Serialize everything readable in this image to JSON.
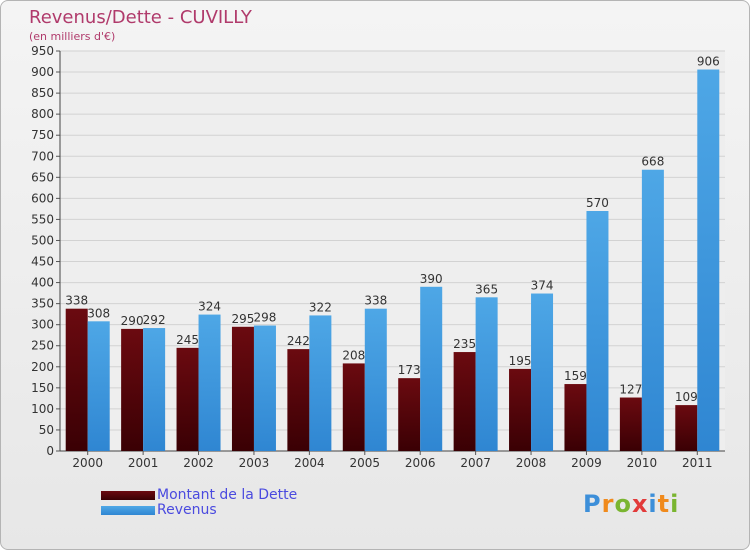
{
  "title": "Revenus/Dette - CUVILLY",
  "subtitle": "(en milliers d'€)",
  "colors": {
    "dette": "#6b0a10",
    "revenus": "#4ea7e6",
    "title": "#b03a6b",
    "legend_text": "#4a4adf"
  },
  "logo": {
    "text": "Proxiti",
    "letters": [
      {
        "char": "P",
        "color": "#3d8fd9"
      },
      {
        "char": "r",
        "color": "#f08a1c"
      },
      {
        "char": "o",
        "color": "#7ab530"
      },
      {
        "char": "x",
        "color": "#e23a3a"
      },
      {
        "char": "i",
        "color": "#3d8fd9"
      },
      {
        "char": "t",
        "color": "#f08a1c"
      },
      {
        "char": "i",
        "color": "#7ab530"
      }
    ]
  },
  "chart_data": {
    "type": "bar",
    "title": "Revenus/Dette - CUVILLY",
    "subtitle": "(en milliers d'€)",
    "categories": [
      "2000",
      "2001",
      "2002",
      "2003",
      "2004",
      "2005",
      "2006",
      "2007",
      "2008",
      "2009",
      "2010",
      "2011"
    ],
    "series": [
      {
        "name": "Montant de la Dette",
        "color": "#6b0a10",
        "values": [
          338,
          290,
          245,
          295,
          242,
          208,
          173,
          235,
          195,
          159,
          127,
          109
        ]
      },
      {
        "name": "Revenus",
        "color": "#4ea7e6",
        "values": [
          308,
          292,
          324,
          298,
          322,
          338,
          390,
          365,
          374,
          570,
          668,
          906
        ]
      }
    ],
    "ylim": [
      0,
      950
    ],
    "yticks": [
      0,
      50,
      100,
      150,
      200,
      250,
      300,
      350,
      400,
      450,
      500,
      550,
      600,
      650,
      700,
      750,
      800,
      850,
      900,
      950
    ],
    "grid": true,
    "legend_position": "bottom-left",
    "xlabel": "",
    "ylabel": ""
  }
}
